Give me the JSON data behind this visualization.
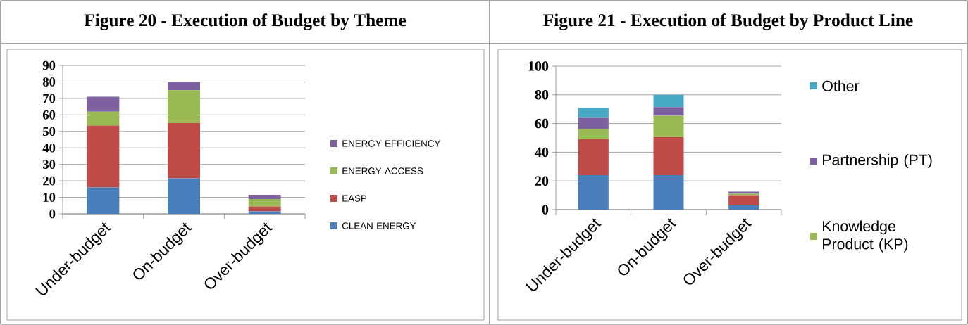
{
  "chart_data": [
    {
      "type": "bar",
      "stacked": true,
      "title": "Figure 20 - Execution of Budget by Theme",
      "categories": [
        "Under-budget",
        "On-budget",
        "Over-budget"
      ],
      "series": [
        {
          "name": "CLEAN ENERGY",
          "color": "#4a7ebb",
          "values": [
            16,
            21.5,
            1.5
          ]
        },
        {
          "name": "EASP",
          "color": "#be4b48",
          "values": [
            37.5,
            33.5,
            3
          ]
        },
        {
          "name": "ENERGY ACCESS",
          "color": "#98b954",
          "values": [
            8.5,
            20,
            4.5
          ]
        },
        {
          "name": "ENERGY EFFICIENCY",
          "color": "#7d60a0",
          "values": [
            9,
            5,
            2.5
          ]
        }
      ],
      "ylim": [
        0,
        90
      ],
      "yticks": [
        0,
        10,
        20,
        30,
        40,
        50,
        60,
        70,
        80,
        90
      ],
      "grid": "y",
      "legend": "right"
    },
    {
      "type": "bar",
      "stacked": true,
      "title": "Figure 21 - Execution of Budget by Product Line",
      "categories": [
        "Under-budget",
        "On-budget",
        "Over-budget"
      ],
      "series": [
        {
          "color": "#4a7ebb",
          "values": [
            24,
            24,
            3
          ]
        },
        {
          "color": "#be4b48",
          "values": [
            25,
            26.5,
            7
          ]
        },
        {
          "name": "Knowledge Product (KP)",
          "color": "#98b954",
          "values": [
            7,
            15,
            1
          ]
        },
        {
          "name": "Partnership (PT)",
          "color": "#7d60a0",
          "values": [
            8,
            6,
            1.5
          ]
        },
        {
          "name": "Other",
          "color": "#46aac5",
          "values": [
            7,
            8.5,
            null
          ]
        }
      ],
      "ylim": [
        0,
        100
      ],
      "yticks": [
        0,
        20,
        40,
        60,
        80,
        100
      ],
      "grid": "y",
      "legend": "right"
    }
  ]
}
